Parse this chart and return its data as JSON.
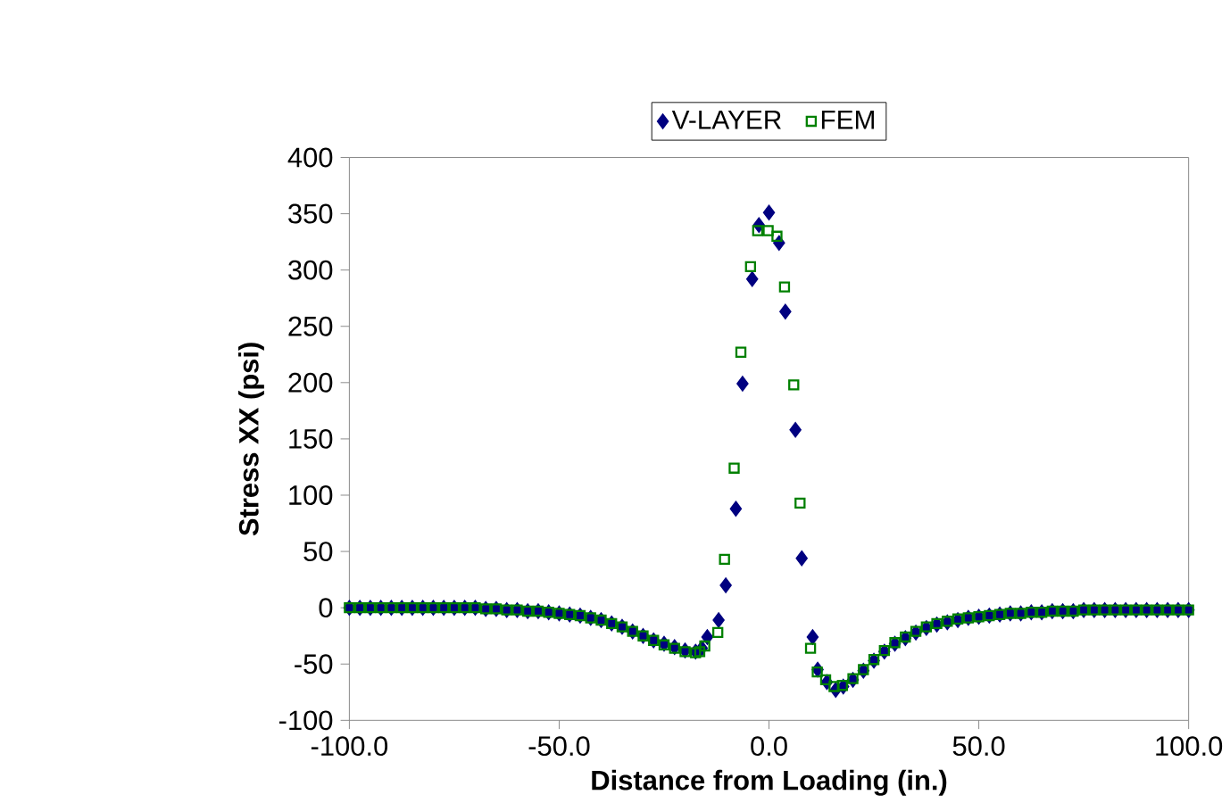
{
  "chart_data": {
    "type": "scatter",
    "xlabel": "Distance from Loading (in.)",
    "ylabel": "Stress XX (psi)",
    "xlim": [
      -100,
      100
    ],
    "ylim": [
      -100,
      400
    ],
    "xticks": [
      {
        "value": -100,
        "label": "-100.0"
      },
      {
        "value": -50,
        "label": "-50.0"
      },
      {
        "value": 0,
        "label": "0.0"
      },
      {
        "value": 50,
        "label": "50.0"
      },
      {
        "value": 100,
        "label": "100.0"
      }
    ],
    "yticks": [
      -100,
      -50,
      0,
      50,
      100,
      150,
      200,
      250,
      300,
      350,
      400
    ],
    "grid": false,
    "legend": "top",
    "series": [
      {
        "name": "V-LAYER",
        "color": "#000080",
        "marker": "diamond",
        "x": [
          -100,
          -97.5,
          -95,
          -92.5,
          -90,
          -87.5,
          -85,
          -82.5,
          -80,
          -77.5,
          -75,
          -72.5,
          -70,
          -67.5,
          -65,
          -62.5,
          -60,
          -57.5,
          -55,
          -52.5,
          -50,
          -47.5,
          -45,
          -42.5,
          -40,
          -37.5,
          -35,
          -32.5,
          -30,
          -27.5,
          -25,
          -22.5,
          -20,
          -17.5,
          -16,
          -14.7,
          -12,
          -10.3,
          -7.9,
          -6.3,
          -4,
          -2.4,
          0,
          2.4,
          3.9,
          6.3,
          7.8,
          10.4,
          11.6,
          13.8,
          15.9,
          17.7,
          20,
          22.5,
          25,
          27.5,
          30,
          32.5,
          35,
          37.5,
          40,
          42.5,
          45,
          47.5,
          50,
          52.5,
          55,
          57.5,
          60,
          62.5,
          65,
          67.5,
          70,
          72.5,
          75,
          77.5,
          80,
          82.5,
          85,
          87.5,
          90,
          92.5,
          95,
          97.5,
          100
        ],
        "values": [
          0,
          0,
          0,
          0,
          0,
          0,
          0,
          0,
          0,
          0,
          0,
          0,
          0,
          -1,
          -1,
          -2,
          -2,
          -3,
          -3,
          -4,
          -5,
          -6,
          -7,
          -9,
          -11,
          -14,
          -17,
          -21,
          -25,
          -29,
          -32,
          -35,
          -38,
          -39,
          -36,
          -26,
          -11,
          20,
          88,
          199,
          292,
          340,
          351,
          324,
          263,
          158,
          44,
          -26,
          -55,
          -66,
          -73,
          -70,
          -64,
          -56,
          -47,
          -39,
          -32,
          -27,
          -22,
          -18,
          -15,
          -13,
          -11,
          -9,
          -8,
          -7,
          -6,
          -5,
          -5,
          -4,
          -4,
          -3,
          -3,
          -3,
          -2,
          -2,
          -2,
          -2,
          -2,
          -2,
          -2,
          -2,
          -2,
          -2,
          -2
        ]
      },
      {
        "name": "FEM",
        "color": "#008000",
        "marker": "square",
        "x": [
          -100,
          -97.5,
          -95,
          -92.5,
          -90,
          -87.5,
          -85,
          -82.5,
          -80,
          -77.5,
          -75,
          -72.5,
          -70,
          -67.5,
          -65,
          -62.5,
          -60,
          -57.5,
          -55,
          -52.5,
          -50,
          -47.5,
          -45,
          -42.5,
          -40,
          -37.5,
          -35,
          -32.5,
          -30,
          -27.5,
          -25,
          -22.5,
          -20,
          -17.5,
          -16.5,
          -15.3,
          -12.2,
          -10.6,
          -8.3,
          -6.7,
          -4.4,
          -2.7,
          -0.2,
          1.9,
          3.7,
          5.9,
          7.4,
          9.9,
          11.5,
          13.5,
          15.5,
          17.5,
          20,
          22.5,
          25,
          27.5,
          30,
          32.5,
          35,
          37.5,
          40,
          42.5,
          45,
          47.5,
          50,
          52.5,
          55,
          57.5,
          60,
          62.5,
          65,
          67.5,
          70,
          72.5,
          75,
          77.5,
          80,
          82.5,
          85,
          87.5,
          90,
          92.5,
          95,
          97.5,
          100
        ],
        "values": [
          0,
          0,
          0,
          0,
          0,
          0,
          0,
          0,
          0,
          0,
          0,
          0,
          0,
          -1,
          -1,
          -2,
          -2,
          -3,
          -3,
          -4,
          -5,
          -6,
          -7,
          -9,
          -11,
          -14,
          -17,
          -21,
          -25,
          -29,
          -33,
          -36,
          -39,
          -40,
          -39,
          -34,
          -22,
          43,
          124,
          227,
          303,
          335,
          335,
          330,
          285,
          198,
          93,
          -36,
          -57,
          -64,
          -70,
          -69,
          -63,
          -55,
          -46,
          -38,
          -31,
          -26,
          -21,
          -17,
          -14,
          -12,
          -10,
          -9,
          -8,
          -7,
          -6,
          -5,
          -5,
          -4,
          -4,
          -3,
          -3,
          -3,
          -2,
          -2,
          -2,
          -2,
          -2,
          -2,
          -2,
          -2,
          -2,
          -2,
          -2
        ]
      }
    ]
  }
}
